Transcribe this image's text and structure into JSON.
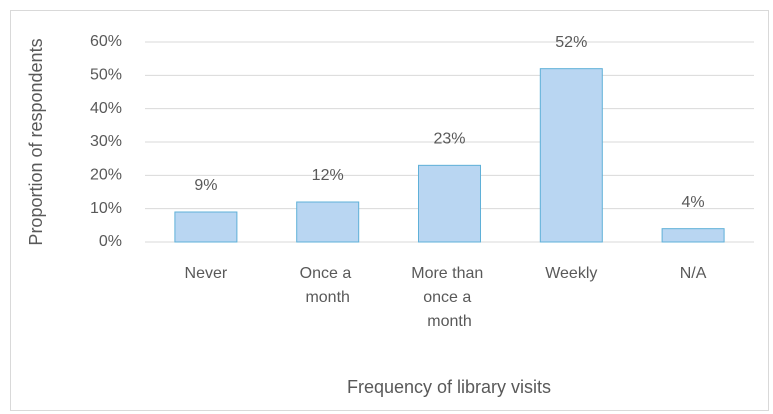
{
  "chart_data": {
    "type": "bar",
    "x_label": "Frequency of library visits",
    "y_label": "Proportion of respondents",
    "categories": [
      "Never",
      "Once a month",
      "More than once a month",
      "Weekly",
      "N/A"
    ],
    "values": [
      9,
      12,
      23,
      52,
      4
    ],
    "value_labels": [
      "9%",
      "12%",
      "23%",
      "52%",
      "4%"
    ],
    "color": "#b9d6f2",
    "ylim": [
      0,
      60
    ],
    "yticks": [
      {
        "value": 0,
        "label": "0%"
      },
      {
        "value": 10,
        "label": "10%"
      },
      {
        "value": 20,
        "label": "20%"
      },
      {
        "value": 30,
        "label": "30%"
      },
      {
        "value": 40,
        "label": "40%"
      },
      {
        "value": 50,
        "label": "50%"
      },
      {
        "value": 60,
        "label": "60%"
      }
    ],
    "grid": true
  }
}
